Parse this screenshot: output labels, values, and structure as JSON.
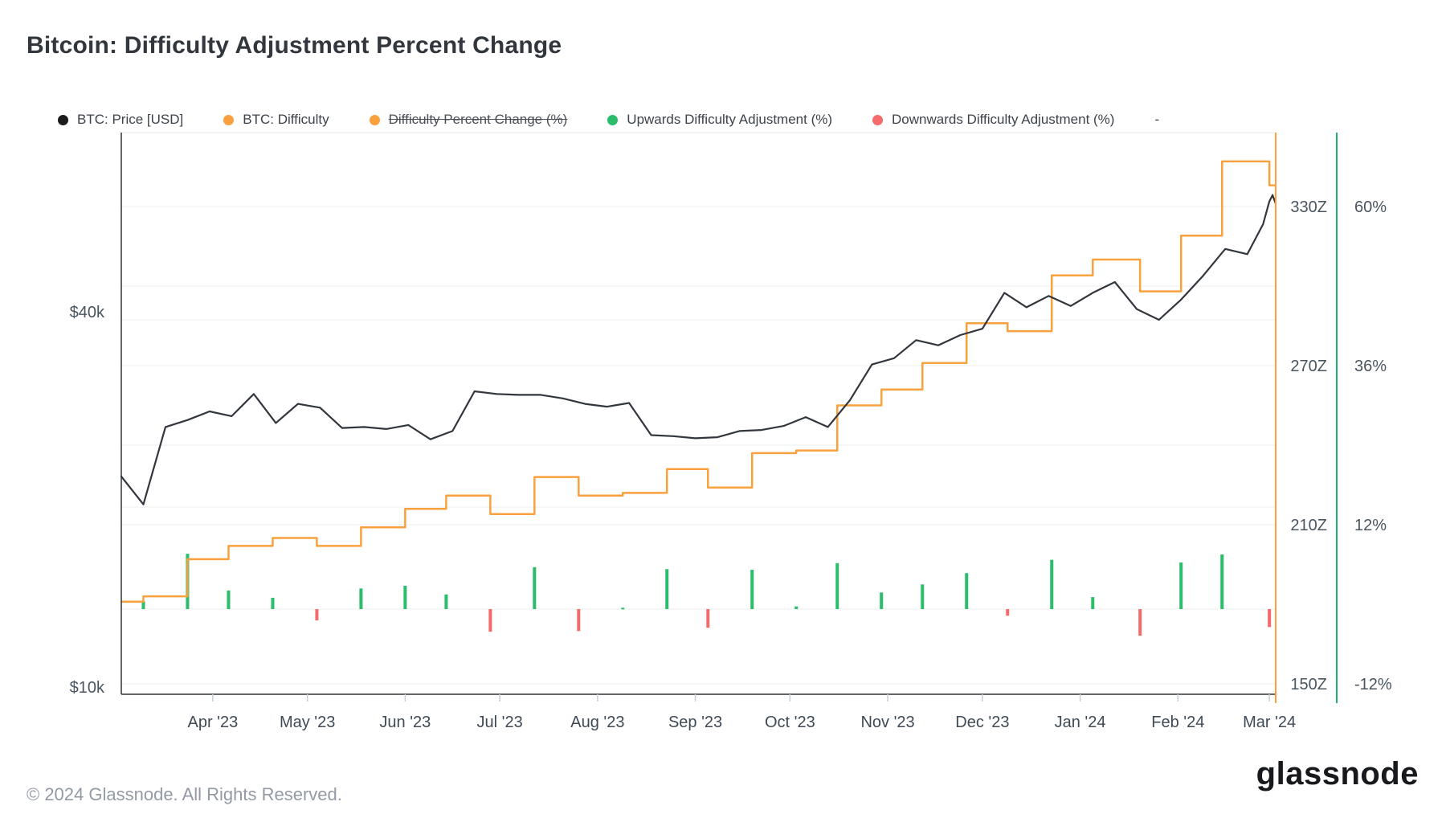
{
  "header": {
    "title": "Bitcoin: Difficulty Adjustment Percent Change"
  },
  "legend": {
    "items": [
      {
        "label": "BTC: Price [USD]",
        "color": "#1b1b1b",
        "strikethrough": false
      },
      {
        "label": "BTC: Difficulty",
        "color": "#f9a13e",
        "strikethrough": false
      },
      {
        "label": "Difficulty Percent Change (%)",
        "color": "#f9a13e",
        "strikethrough": true
      },
      {
        "label": "Upwards Difficulty Adjustment (%)",
        "color": "#2bbd6b",
        "strikethrough": false
      },
      {
        "label": "Downwards Difficulty Adjustment (%)",
        "color": "#f56a6a",
        "strikethrough": false
      }
    ],
    "extra": "-"
  },
  "footer": {
    "copyright": "© 2024 Glassnode. All Rights Reserved.",
    "logo": "glassnode"
  },
  "colors": {
    "price": "#32363d",
    "difficulty": "#f9a13e",
    "upward": "#2bbd6b",
    "downward": "#f56a6a",
    "grid": "#ececec",
    "axis": "#2f3337",
    "tick": "#c9ced4",
    "percent_axis": "#23b26b"
  },
  "chart_data": {
    "type": "line",
    "title": "Bitcoin: Difficulty Adjustment Percent Change",
    "x_range": [
      "2023-03-03",
      "2024-03-03"
    ],
    "x_axis": {
      "labels": [
        "Apr '23",
        "May '23",
        "Jun '23",
        "Jul '23",
        "Aug '23",
        "Sep '23",
        "Oct '23",
        "Nov '23",
        "Dec '23",
        "Jan '24",
        "Feb '24",
        "Mar '24"
      ],
      "dates": [
        "2023-04-01",
        "2023-05-01",
        "2023-06-01",
        "2023-07-01",
        "2023-08-01",
        "2023-09-01",
        "2023-10-01",
        "2023-11-01",
        "2023-12-01",
        "2024-01-01",
        "2024-02-01",
        "2024-03-01"
      ]
    },
    "y_axis_price": {
      "scale": "log",
      "labels": [
        "$40k",
        "$10k"
      ],
      "values_k": [
        40,
        10
      ]
    },
    "y_axis_difficulty": {
      "labels": [
        "330Z",
        "270Z",
        "210Z",
        "150Z"
      ],
      "values": [
        330,
        270,
        210,
        150
      ],
      "unit": "Z"
    },
    "y_axis_percent": {
      "labels": [
        "60%",
        "36%",
        "12%",
        "-12%"
      ],
      "values": [
        60,
        36,
        12,
        -12
      ],
      "zero_line": 0
    },
    "grid": "on",
    "legend_position": "top",
    "series": [
      {
        "name": "BTC: Price [USD]",
        "type": "line",
        "unit": "$k",
        "points": [
          [
            "2023-03-03",
            22.4
          ],
          [
            "2023-03-10",
            20.2
          ],
          [
            "2023-03-17",
            26.9
          ],
          [
            "2023-03-24",
            27.6
          ],
          [
            "2023-03-31",
            28.5
          ],
          [
            "2023-04-07",
            28.0
          ],
          [
            "2023-04-14",
            30.4
          ],
          [
            "2023-04-21",
            27.3
          ],
          [
            "2023-04-28",
            29.3
          ],
          [
            "2023-05-05",
            28.9
          ],
          [
            "2023-05-12",
            26.8
          ],
          [
            "2023-05-19",
            26.9
          ],
          [
            "2023-05-26",
            26.7
          ],
          [
            "2023-06-02",
            27.1
          ],
          [
            "2023-06-09",
            25.7
          ],
          [
            "2023-06-16",
            26.5
          ],
          [
            "2023-06-23",
            30.7
          ],
          [
            "2023-06-30",
            30.4
          ],
          [
            "2023-07-07",
            30.3
          ],
          [
            "2023-07-14",
            30.3
          ],
          [
            "2023-07-21",
            29.9
          ],
          [
            "2023-07-28",
            29.3
          ],
          [
            "2023-08-04",
            29.0
          ],
          [
            "2023-08-11",
            29.4
          ],
          [
            "2023-08-18",
            26.1
          ],
          [
            "2023-08-25",
            26.0
          ],
          [
            "2023-09-01",
            25.8
          ],
          [
            "2023-09-08",
            25.9
          ],
          [
            "2023-09-15",
            26.5
          ],
          [
            "2023-09-22",
            26.6
          ],
          [
            "2023-09-29",
            27.0
          ],
          [
            "2023-10-06",
            27.9
          ],
          [
            "2023-10-13",
            26.9
          ],
          [
            "2023-10-20",
            29.7
          ],
          [
            "2023-10-27",
            33.9
          ],
          [
            "2023-11-03",
            34.7
          ],
          [
            "2023-11-10",
            37.1
          ],
          [
            "2023-11-17",
            36.4
          ],
          [
            "2023-11-24",
            37.8
          ],
          [
            "2023-12-01",
            38.7
          ],
          [
            "2023-12-08",
            44.2
          ],
          [
            "2023-12-15",
            41.9
          ],
          [
            "2023-12-22",
            43.7
          ],
          [
            "2023-12-29",
            42.1
          ],
          [
            "2024-01-05",
            44.2
          ],
          [
            "2024-01-12",
            46.0
          ],
          [
            "2024-01-19",
            41.6
          ],
          [
            "2024-01-26",
            40.0
          ],
          [
            "2024-02-02",
            43.1
          ],
          [
            "2024-02-09",
            47.1
          ],
          [
            "2024-02-16",
            52.0
          ],
          [
            "2024-02-23",
            51.0
          ],
          [
            "2024-02-28",
            57.0
          ],
          [
            "2024-03-01",
            62.0
          ],
          [
            "2024-03-02",
            63.5
          ],
          [
            "2024-03-03",
            61.5
          ]
        ]
      },
      {
        "name": "BTC: Difficulty",
        "type": "step",
        "unit": "Z",
        "start_level": 181
      },
      {
        "name": "Upwards Difficulty Adjustment (%)",
        "type": "bar",
        "sign": "positive"
      },
      {
        "name": "Downwards Difficulty Adjustment (%)",
        "type": "bar",
        "sign": "negative"
      }
    ],
    "adjustments": [
      {
        "date": "2023-03-10",
        "pct": 1.2,
        "difficulty_z": 183
      },
      {
        "date": "2023-03-24",
        "pct": 8.3,
        "difficulty_z": 197
      },
      {
        "date": "2023-04-06",
        "pct": 2.8,
        "difficulty_z": 202
      },
      {
        "date": "2023-04-20",
        "pct": 1.7,
        "difficulty_z": 205
      },
      {
        "date": "2023-05-04",
        "pct": -1.7,
        "difficulty_z": 202
      },
      {
        "date": "2023-05-18",
        "pct": 3.1,
        "difficulty_z": 209
      },
      {
        "date": "2023-06-01",
        "pct": 3.5,
        "difficulty_z": 216
      },
      {
        "date": "2023-06-14",
        "pct": 2.2,
        "difficulty_z": 221
      },
      {
        "date": "2023-06-28",
        "pct": -3.4,
        "difficulty_z": 214
      },
      {
        "date": "2023-07-12",
        "pct": 6.3,
        "difficulty_z": 228
      },
      {
        "date": "2023-07-26",
        "pct": -3.3,
        "difficulty_z": 221
      },
      {
        "date": "2023-08-09",
        "pct": 0.2,
        "difficulty_z": 222
      },
      {
        "date": "2023-08-23",
        "pct": 6.0,
        "difficulty_z": 231
      },
      {
        "date": "2023-09-05",
        "pct": -2.8,
        "difficulty_z": 224
      },
      {
        "date": "2023-09-19",
        "pct": 5.9,
        "difficulty_z": 237
      },
      {
        "date": "2023-10-03",
        "pct": 0.4,
        "difficulty_z": 238
      },
      {
        "date": "2023-10-16",
        "pct": 6.9,
        "difficulty_z": 255
      },
      {
        "date": "2023-10-30",
        "pct": 2.5,
        "difficulty_z": 261
      },
      {
        "date": "2023-11-12",
        "pct": 3.7,
        "difficulty_z": 271
      },
      {
        "date": "2023-11-26",
        "pct": 5.4,
        "difficulty_z": 286
      },
      {
        "date": "2023-12-09",
        "pct": -1.0,
        "difficulty_z": 283
      },
      {
        "date": "2023-12-23",
        "pct": 7.4,
        "difficulty_z": 304
      },
      {
        "date": "2024-01-05",
        "pct": 1.8,
        "difficulty_z": 310
      },
      {
        "date": "2024-01-20",
        "pct": -4.0,
        "difficulty_z": 298
      },
      {
        "date": "2024-02-02",
        "pct": 7.0,
        "difficulty_z": 319
      },
      {
        "date": "2024-02-15",
        "pct": 8.2,
        "difficulty_z": 347
      },
      {
        "date": "2024-03-01",
        "pct": -2.7,
        "difficulty_z": 338
      }
    ]
  }
}
